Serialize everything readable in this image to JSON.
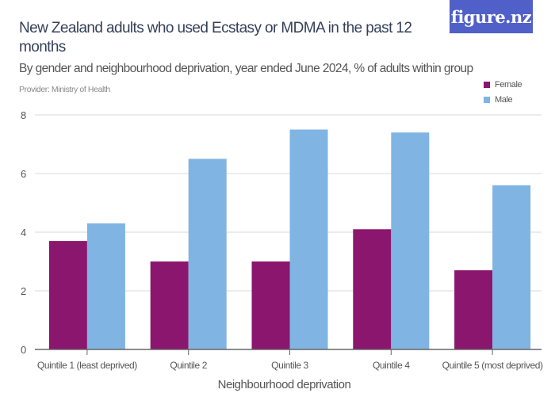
{
  "header": {
    "title": "New Zealand adults who used Ecstasy or MDMA in the past 12 months",
    "subtitle": "By gender and neighbourhood deprivation, year ended June 2024, % of adults within group",
    "provider": "Provider: Ministry of Health",
    "logo_text": "figure.nz",
    "logo_color": "#5060c8"
  },
  "chart_data": {
    "type": "bar",
    "title": "New Zealand adults who used Ecstasy or MDMA in the past 12 months",
    "subtitle": "By gender and neighbourhood deprivation, year ended June 2024, % of adults within group",
    "xlabel": "Neighbourhood deprivation",
    "ylabel": "",
    "categories": [
      "Quintile 1 (least deprived)",
      "Quintile 2",
      "Quintile 3",
      "Quintile 4",
      "Quintile 5 (most deprived)"
    ],
    "series": [
      {
        "name": "Female",
        "color": "#8a166e",
        "values": [
          3.7,
          3.0,
          3.0,
          4.1,
          2.7
        ]
      },
      {
        "name": "Male",
        "color": "#7fb4e3",
        "values": [
          4.3,
          6.5,
          7.5,
          7.4,
          5.6
        ]
      }
    ],
    "ylim": [
      0,
      8
    ],
    "yticks": [
      0,
      2,
      4,
      6,
      8
    ],
    "grid": true,
    "legend_position": "top-right"
  }
}
